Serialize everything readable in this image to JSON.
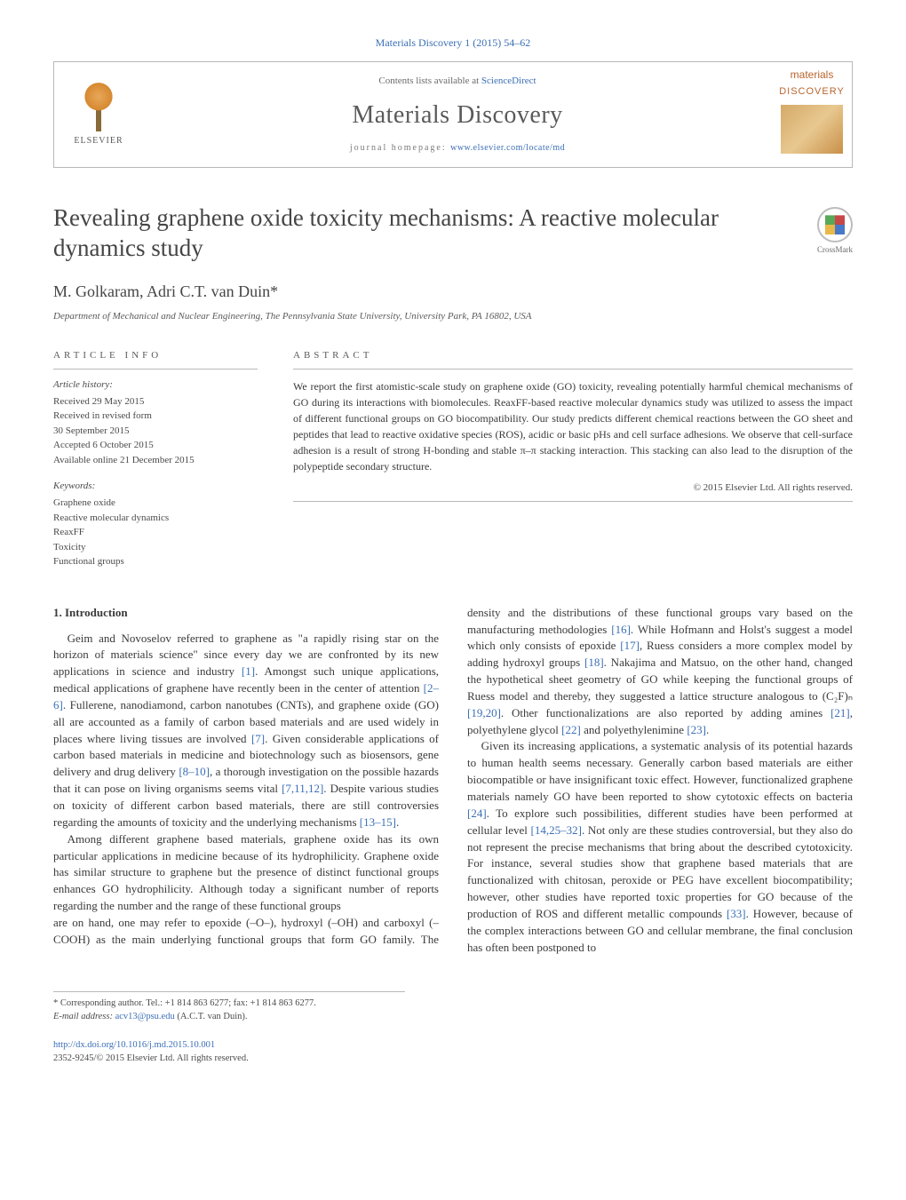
{
  "colors": {
    "link": "#3b6fb6",
    "text": "#3a3a3a",
    "muted": "#6a6a6a",
    "rule": "#b8b8b8",
    "publisher_accent": "#e8a85a",
    "cover_accent": "#b8652e"
  },
  "typography": {
    "body_family": "Times New Roman",
    "body_size_pt": 13,
    "title_size_pt": 27,
    "journal_name_size_pt": 28,
    "authors_size_pt": 18,
    "small_size_pt": 11
  },
  "journal_ref": "Materials Discovery 1 (2015) 54–62",
  "masthead": {
    "publisher": "ELSEVIER",
    "contents_prefix": "Contents lists available at ",
    "contents_link": "ScienceDirect",
    "journal_name": "Materials Discovery",
    "homepage_prefix": "journal homepage: ",
    "homepage_link": "www.elsevier.com/locate/md",
    "cover_word1": "materials",
    "cover_word2": "DISCOVERY"
  },
  "crossmark": "CrossMark",
  "title": "Revealing graphene oxide toxicity mechanisms: A reactive molecular dynamics study",
  "authors": "M. Golkaram, Adri C.T. van Duin*",
  "affiliation": "Department of Mechanical and Nuclear Engineering, The Pennsylvania State University, University Park, PA 16802, USA",
  "info": {
    "label": "article info",
    "history_label": "Article history:",
    "history": [
      "Received 29 May 2015",
      "Received in revised form",
      "30 September 2015",
      "Accepted 6 October 2015",
      "Available online 21 December 2015"
    ],
    "keywords_label": "Keywords:",
    "keywords": [
      "Graphene oxide",
      "Reactive molecular dynamics",
      "ReaxFF",
      "Toxicity",
      "Functional groups"
    ]
  },
  "abstract": {
    "label": "abstract",
    "text": "We report the first atomistic-scale study on graphene oxide (GO) toxicity, revealing potentially harmful chemical mechanisms of GO during its interactions with biomolecules. ReaxFF-based reactive molecular dynamics study was utilized to assess the impact of different functional groups on GO biocompatibility. Our study predicts different chemical reactions between the GO sheet and peptides that lead to reactive oxidative species (ROS), acidic or basic pHs and cell surface adhesions. We observe that cell-surface adhesion is a result of strong H-bonding and stable π–π stacking interaction. This stacking can also lead to the disruption of the polypeptide secondary structure.",
    "copyright": "© 2015 Elsevier Ltd. All rights reserved."
  },
  "body": {
    "heading": "1. Introduction",
    "p1a": "Geim and Novoselov referred to graphene as \"a rapidly rising star on the horizon of materials science\" since every day we are confronted by its new applications in science and industry ",
    "r1": "[1]",
    "p1b": ". Amongst such unique applications, medical applications of graphene have recently been in the center of attention ",
    "r2": "[2–6]",
    "p1c": ". Fullerene, nanodiamond, carbon nanotubes (CNTs), and graphene oxide (GO) all are accounted as a family of carbon based materials and are used widely in places where living tissues are involved ",
    "r3": "[7]",
    "p1d": ". Given considerable applications of carbon based materials in medicine and biotechnology such as biosensors, gene delivery and drug delivery ",
    "r4": "[8–10]",
    "p1e": ", a thorough investigation on the possible hazards that it can pose on living organisms seems vital ",
    "r5": "[7,11,12]",
    "p1f": ". Despite various studies on toxicity of different carbon based materials, there are still controversies regarding the amounts of toxicity and the underlying mechanisms ",
    "r6": "[13–15]",
    "p1g": ".",
    "p2": "Among different graphene based materials, graphene oxide has its own particular applications in medicine because of its hydrophilicity. Graphene oxide has similar structure to graphene but the presence of distinct functional groups enhances GO hydrophilicity. Although today a significant number of reports regarding the number and the range of these functional groups",
    "p3a": "are on hand, one may refer to epoxide (–O–), hydroxyl (–OH) and carboxyl (–COOH) as the main underlying functional groups that form GO family. The density and the distributions of these functional groups vary based on the manufacturing methodologies ",
    "r7": "[16]",
    "p3b": ". While Hofmann and Holst's suggest a model which only consists of epoxide ",
    "r8": "[17]",
    "p3c": ", Ruess considers a more complex model by adding hydroxyl groups ",
    "r9": "[18]",
    "p3d": ". Nakajima and Matsuo, on the other hand, changed the hypothetical sheet geometry of GO while keeping the functional groups of Ruess model and thereby, they suggested a lattice structure analogous to (C₂F)ₙ ",
    "r10": "[19,20]",
    "p3e": ". Other functionalizations are also reported by adding amines ",
    "r11": "[21]",
    "p3f": ", polyethylene glycol ",
    "r12": "[22]",
    "p3g": " and polyethylenimine ",
    "r13": "[23]",
    "p3h": ".",
    "p4a": "Given its increasing applications, a systematic analysis of its potential hazards to human health seems necessary. Generally carbon based materials are either biocompatible or have insignificant toxic effect. However, functionalized graphene materials namely GO have been reported to show cytotoxic effects on bacteria ",
    "r14": "[24]",
    "p4b": ". To explore such possibilities, different studies have been performed at cellular level ",
    "r15": "[14,25–32]",
    "p4c": ". Not only are these studies controversial, but they also do not represent the precise mechanisms that bring about the described cytotoxicity. For instance, several studies show that graphene based materials that are functionalized with chitosan, peroxide or PEG have excellent biocompatibility; however, other studies have reported toxic properties for GO because of the production of ROS and different metallic compounds ",
    "r16": "[33]",
    "p4d": ". However, because of the complex interactions between GO and cellular membrane, the final conclusion has often been postponed to"
  },
  "footnotes": {
    "corr": "* Corresponding author. Tel.: +1 814 863 6277; fax: +1 814 863 6277.",
    "email_label": "E-mail address: ",
    "email": "acv13@psu.edu",
    "email_suffix": " (A.C.T. van Duin)."
  },
  "doi": {
    "link": "http://dx.doi.org/10.1016/j.md.2015.10.001",
    "issn_line": "2352-9245/© 2015 Elsevier Ltd. All rights reserved."
  }
}
